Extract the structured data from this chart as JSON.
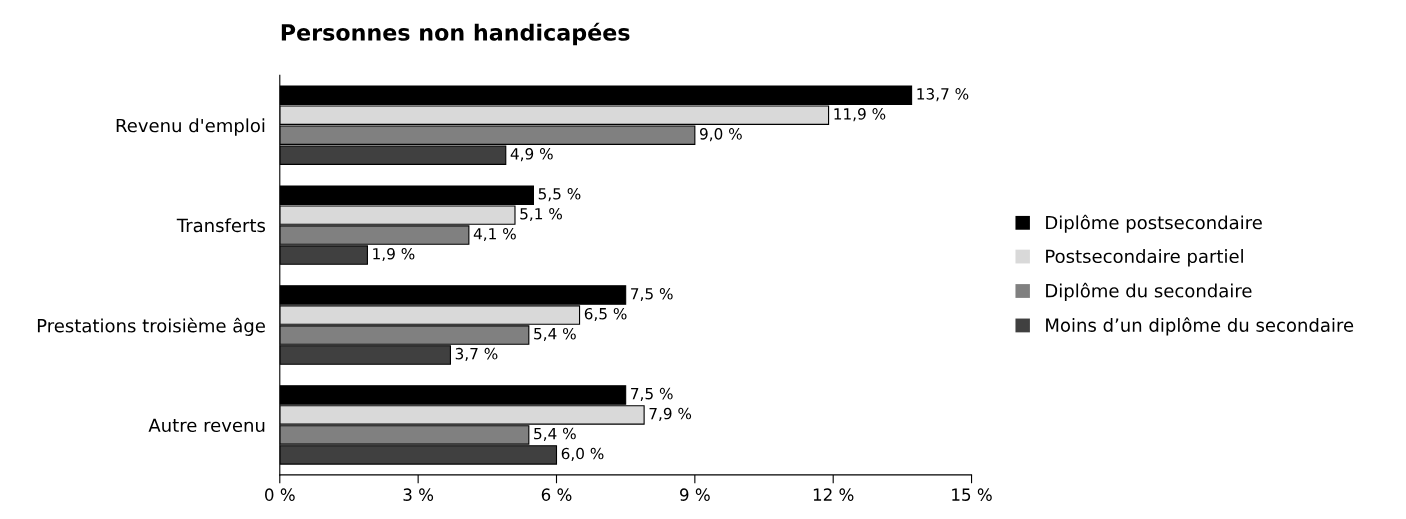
{
  "chart_data": {
    "type": "bar",
    "orientation": "horizontal",
    "title": "Personnes non handicapées",
    "categories": [
      "Revenu d'emploi",
      "Transferts",
      "Prestations troisième âge",
      "Autre revenu"
    ],
    "series": [
      {
        "name": "Diplôme postsecondaire",
        "color": "#000000",
        "values": [
          13.7,
          5.5,
          7.5,
          7.5
        ],
        "value_labels": [
          "13,7 %",
          "5,5 %",
          "7,5 %",
          "7,5 %"
        ]
      },
      {
        "name": "Postsecondaire partiel",
        "color": "#d9d9d9",
        "values": [
          11.9,
          5.1,
          6.5,
          7.9
        ],
        "value_labels": [
          "11,9 %",
          "5,1 %",
          "6,5 %",
          "7,9 %"
        ]
      },
      {
        "name": "Diplôme du secondaire",
        "color": "#808080",
        "values": [
          9.0,
          4.1,
          5.4,
          5.4
        ],
        "value_labels": [
          "9,0 %",
          "4,1 %",
          "5,4 %",
          "5,4 %"
        ]
      },
      {
        "name": "Moins d’un diplôme du secondaire",
        "color": "#404040",
        "values": [
          4.9,
          1.9,
          3.7,
          6.0
        ],
        "value_labels": [
          "4,9 %",
          "1,9 %",
          "3,7 %",
          "6,0 %"
        ]
      }
    ],
    "xlim": [
      0,
      15
    ],
    "xticks": [
      {
        "value": 0,
        "label": "0 %"
      },
      {
        "value": 3,
        "label": "3 %"
      },
      {
        "value": 6,
        "label": "6 %"
      },
      {
        "value": 9,
        "label": "9 %"
      },
      {
        "value": 12,
        "label": "12 %"
      },
      {
        "value": 15,
        "label": "15 %"
      }
    ],
    "legend": "right",
    "grid": false
  }
}
